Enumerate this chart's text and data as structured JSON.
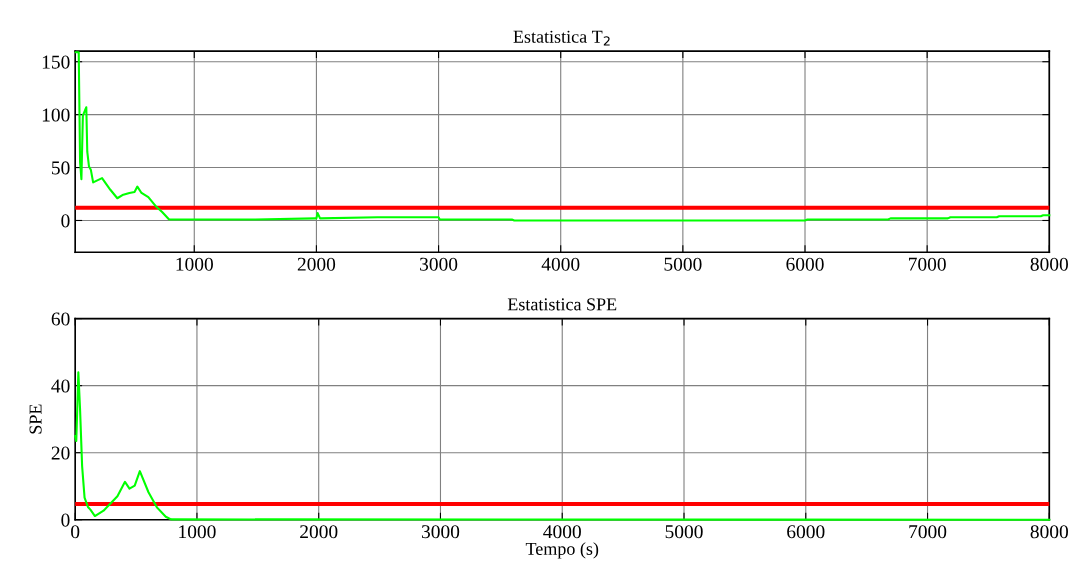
{
  "chart_data": [
    {
      "type": "line",
      "title": "Estatistica T$_{2}$",
      "xlim": [
        25,
        8000
      ],
      "xticks": [
        1000,
        2000,
        3000,
        4000,
        5000,
        6000,
        7000,
        8000
      ],
      "ylim": [
        -30,
        160
      ],
      "yticks": [
        0,
        50,
        100,
        150
      ],
      "grid": true,
      "series": [
        {
          "color": "#00ff00",
          "x": [
            30,
            54,
            65,
            76,
            88,
            102,
            116,
            124,
            138,
            153,
            172,
            245,
            313,
            370,
            412,
            469,
            511,
            534,
            568,
            624,
            681,
            737,
            794,
            1000,
            1500,
            1990,
            2000,
            2010,
            2030,
            2500,
            3000,
            3010,
            3600,
            3620,
            6000,
            6020,
            6680,
            6700,
            7170,
            7190,
            7570,
            7590,
            7930,
            7950,
            8000
          ],
          "values": [
            159,
            159,
            55,
            39,
            99,
            103,
            107,
            65,
            51,
            48,
            36,
            40,
            29,
            21,
            24,
            26,
            27,
            32,
            26,
            22,
            14,
            8,
            1,
            1,
            1,
            2,
            2,
            7,
            2,
            3,
            3,
            1,
            1,
            0,
            0,
            1,
            1,
            2,
            2,
            3,
            3,
            4,
            4,
            5,
            5
          ]
        }
      ],
      "ref_lines": [
        {
          "axis": "y",
          "value": 12,
          "color": "#ff0000"
        }
      ]
    },
    {
      "type": "line",
      "title": "Estatistica SPE",
      "xlabel": "Tempo (s)",
      "ylabel": "SPE",
      "xlim": [
        0,
        8000
      ],
      "xticks": [
        0,
        1000,
        2000,
        3000,
        4000,
        5000,
        6000,
        7000,
        8000
      ],
      "ylim": [
        0,
        60
      ],
      "yticks": [
        0,
        20,
        40,
        60
      ],
      "grid": true,
      "series": [
        {
          "color": "#00ff00",
          "x": [
            0,
            9,
            17,
            26,
            40,
            57,
            77,
            105,
            125,
            162,
            233,
            347,
            409,
            446,
            489,
            531,
            602,
            673,
            744,
            787,
            8000
          ],
          "values": [
            25,
            23.5,
            33,
            44,
            33,
            16,
            6.6,
            3.8,
            3,
            1.1,
            2.7,
            7,
            11.3,
            9.3,
            10.2,
            14.5,
            8.2,
            3.6,
            0.9,
            0.1,
            0
          ]
        }
      ],
      "ref_lines": [
        {
          "axis": "y",
          "value": 4.7,
          "color": "#ff0000"
        }
      ]
    }
  ]
}
